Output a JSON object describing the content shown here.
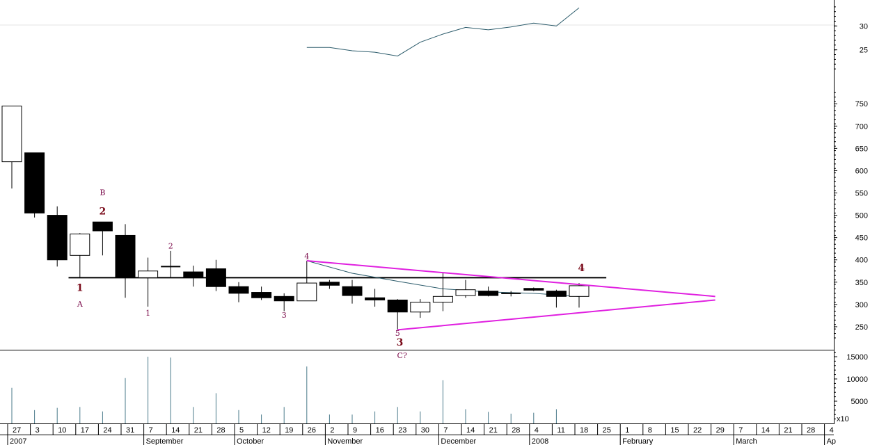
{
  "chart_data": {
    "type": "candlestick",
    "colors": {
      "up_fill": "#ffffff",
      "down_fill": "#000000",
      "triangle": "#e020e0",
      "secondary_line": "#2a5a6a",
      "wave_label": "#7a0a4a"
    },
    "price_axis": {
      "ticks": [
        "250",
        "300",
        "350",
        "400",
        "450",
        "500",
        "550",
        "600",
        "650",
        "700",
        "750"
      ],
      "range": [
        200,
        780
      ]
    },
    "secondary_axis": {
      "ticks": [
        "25",
        "30"
      ],
      "range": [
        20,
        35
      ]
    },
    "volume_axis": {
      "ticks": [
        "5000",
        "10000",
        "15000"
      ],
      "multiplier_label": "x10",
      "range": [
        0,
        16000
      ]
    },
    "date_ticks": [
      "27",
      "3",
      "10",
      "17",
      "24",
      "31",
      "7",
      "14",
      "21",
      "28",
      "5",
      "12",
      "19",
      "26",
      "2",
      "9",
      "16",
      "23",
      "30",
      "7",
      "14",
      "21",
      "28",
      "4",
      "11",
      "18",
      "25",
      "1",
      "8",
      "15",
      "22",
      "29",
      "7",
      "14",
      "21",
      "28",
      "4"
    ],
    "month_labels": [
      "2007",
      "September",
      "October",
      "November",
      "December",
      "2008",
      "February",
      "March",
      "Ap"
    ],
    "candles": [
      {
        "o": 620,
        "h": 745,
        "l": 560,
        "c": 745
      },
      {
        "o": 640,
        "h": 640,
        "l": 495,
        "c": 505
      },
      {
        "o": 500,
        "h": 520,
        "l": 385,
        "c": 400
      },
      {
        "o": 410,
        "h": 460,
        "l": 360,
        "c": 458
      },
      {
        "o": 485,
        "h": 485,
        "l": 410,
        "c": 465
      },
      {
        "o": 455,
        "h": 480,
        "l": 315,
        "c": 360
      },
      {
        "o": 360,
        "h": 405,
        "l": 295,
        "c": 375
      },
      {
        "o": 385,
        "h": 420,
        "l": 360,
        "c": 385
      },
      {
        "o": 373,
        "h": 387,
        "l": 340,
        "c": 360
      },
      {
        "o": 380,
        "h": 400,
        "l": 330,
        "c": 340
      },
      {
        "o": 340,
        "h": 350,
        "l": 305,
        "c": 325
      },
      {
        "o": 327,
        "h": 340,
        "l": 310,
        "c": 315
      },
      {
        "o": 318,
        "h": 325,
        "l": 285,
        "c": 308
      },
      {
        "o": 308,
        "h": 398,
        "l": 308,
        "c": 348
      },
      {
        "o": 350,
        "h": 355,
        "l": 335,
        "c": 343
      },
      {
        "o": 340,
        "h": 355,
        "l": 302,
        "c": 320
      },
      {
        "o": 315,
        "h": 335,
        "l": 295,
        "c": 310
      },
      {
        "o": 310,
        "h": 312,
        "l": 243,
        "c": 283
      },
      {
        "o": 283,
        "h": 312,
        "l": 270,
        "c": 305
      },
      {
        "o": 305,
        "h": 370,
        "l": 285,
        "c": 318
      },
      {
        "o": 320,
        "h": 355,
        "l": 315,
        "c": 333
      },
      {
        "o": 330,
        "h": 340,
        "l": 318,
        "c": 320
      },
      {
        "o": 325,
        "h": 330,
        "l": 318,
        "c": 322
      },
      {
        "o": 336,
        "h": 338,
        "l": 330,
        "c": 332
      },
      {
        "o": 330,
        "h": 333,
        "l": 293,
        "c": 318
      },
      {
        "o": 318,
        "h": 348,
        "l": 293,
        "c": 342
      }
    ],
    "volume_bars": [
      {
        "x": "27",
        "v": 8000
      },
      {
        "x": "3",
        "v": 3000
      },
      {
        "x": "10",
        "v": 3500
      },
      {
        "x": "17",
        "v": 3700
      },
      {
        "x": "24",
        "v": 2700
      },
      {
        "x": "31",
        "v": 10200
      },
      {
        "x": "7",
        "v": 15000
      },
      {
        "x": "14",
        "v": 14800
      },
      {
        "x": "21",
        "v": 3700
      },
      {
        "x": "28",
        "v": 6800
      },
      {
        "x": "5",
        "v": 3000
      },
      {
        "x": "12",
        "v": 2000
      },
      {
        "x": "19",
        "v": 3700
      },
      {
        "x": "26",
        "v": 12800
      },
      {
        "x": "2",
        "v": 2000
      },
      {
        "x": "9",
        "v": 2000
      },
      {
        "x": "16",
        "v": 2700
      },
      {
        "x": "23",
        "v": 3700
      },
      {
        "x": "30",
        "v": 2700
      },
      {
        "x": "7",
        "v": 9700
      },
      {
        "x": "14",
        "v": 3200
      },
      {
        "x": "21",
        "v": 2600
      },
      {
        "x": "4",
        "v": 2200
      },
      {
        "x": "11",
        "v": 2400
      },
      {
        "x": "18",
        "v": 3200
      }
    ],
    "secondary_line": [
      {
        "i": 13,
        "v": 25.5
      },
      {
        "i": 14,
        "v": 25.5
      },
      {
        "i": 15,
        "v": 24.8
      },
      {
        "i": 16,
        "v": 24.5
      },
      {
        "i": 17,
        "v": 23.7
      },
      {
        "i": 18,
        "v": 26.6
      },
      {
        "i": 19,
        "v": 28.3
      },
      {
        "i": 20,
        "v": 29.7
      },
      {
        "i": 21,
        "v": 29.2
      },
      {
        "i": 22,
        "v": 29.8
      },
      {
        "i": 23,
        "v": 30.6
      },
      {
        "i": 24,
        "v": 30.0
      },
      {
        "i": 25,
        "v": 33.8
      }
    ],
    "support_line": {
      "value": 360,
      "from_candle": 2.5,
      "to_candle": 26.2
    },
    "triangle": {
      "apex_price": 315,
      "upper": {
        "from_candle": 13,
        "from": 398,
        "to_price": 318
      },
      "lower": {
        "from_candle": 17,
        "from": 243,
        "to_price": 310
      },
      "apex_index": 31
    },
    "wave_labels": [
      {
        "text": "A",
        "i": 3,
        "price": 295,
        "size": "small"
      },
      {
        "text": "1",
        "i": 3,
        "price": 330,
        "size": "big"
      },
      {
        "text": "B",
        "i": 4,
        "price": 545,
        "size": "small"
      },
      {
        "text": "2",
        "i": 4,
        "price": 502,
        "size": "big"
      },
      {
        "text": "1",
        "i": 6,
        "price": 275,
        "size": "small"
      },
      {
        "text": "2",
        "i": 7,
        "price": 425,
        "size": "small"
      },
      {
        "text": "3",
        "i": 12,
        "price": 270,
        "size": "small"
      },
      {
        "text": "4",
        "i": 13,
        "price": 402,
        "size": "small"
      },
      {
        "text": "5",
        "i": 17,
        "price": 230,
        "size": "small"
      },
      {
        "text": "3",
        "i": 17.1,
        "price": 208,
        "size": "big"
      },
      {
        "text": "C?",
        "i": 17.2,
        "price": 180,
        "size": "small"
      },
      {
        "text": "4",
        "i": 25.1,
        "price": 375,
        "size": "big"
      }
    ]
  }
}
